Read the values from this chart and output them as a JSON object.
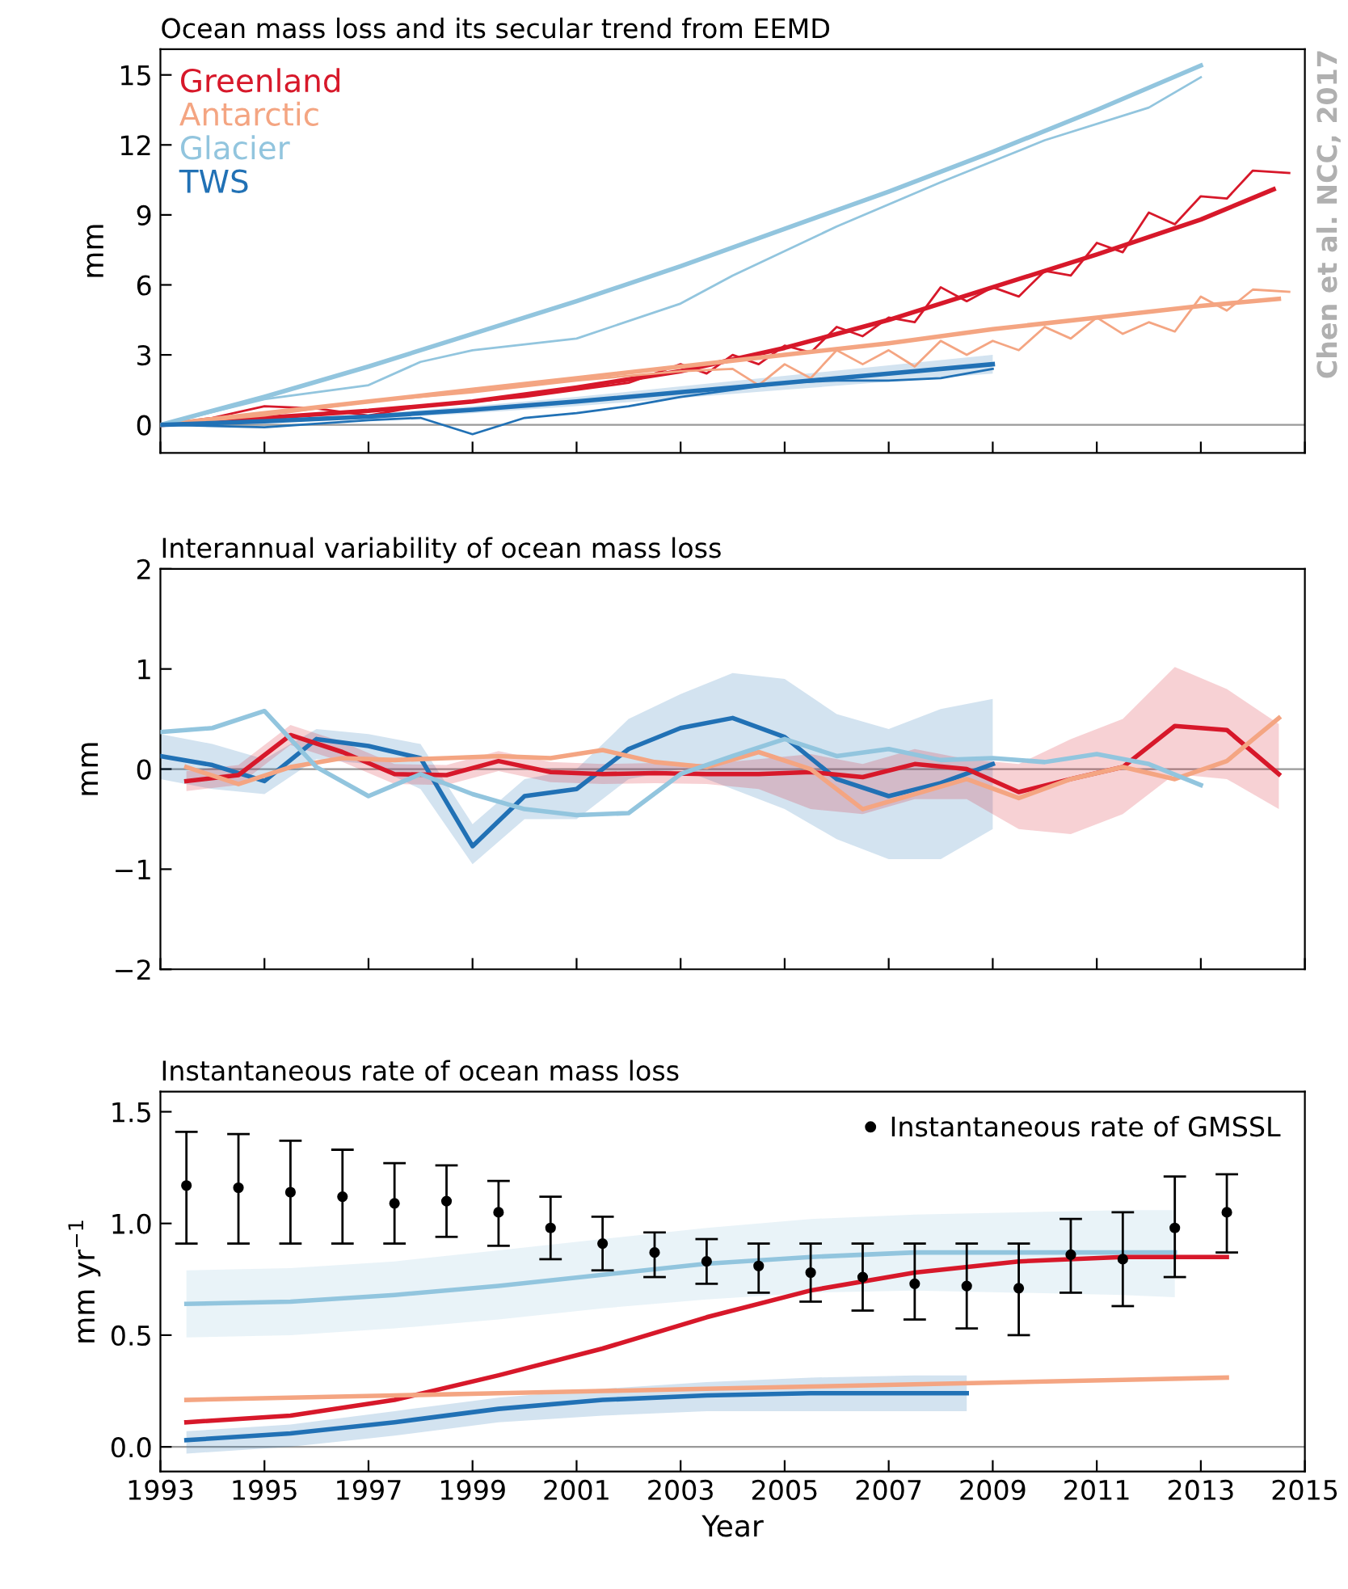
{
  "chart_data": [
    {
      "type": "line",
      "title": "Ocean mass loss and its secular trend from EEMD",
      "ylabel": "mm",
      "xlim": [
        1993,
        2015
      ],
      "xticks": [
        {
          "value": 1993,
          "label": null
        },
        {
          "value": 1995,
          "label": null
        },
        {
          "value": 1997,
          "label": null
        },
        {
          "value": 1999,
          "label": null
        },
        {
          "value": 2001,
          "label": null
        },
        {
          "value": 2003,
          "label": null
        },
        {
          "value": 2005,
          "label": null
        },
        {
          "value": 2007,
          "label": null
        },
        {
          "value": 2009,
          "label": null
        },
        {
          "value": 2011,
          "label": null
        },
        {
          "value": 2013,
          "label": null
        },
        {
          "value": 2015,
          "label": null
        }
      ],
      "ylim": [
        -1.2,
        16.1
      ],
      "yticks": [
        0,
        3,
        6,
        9,
        12,
        15
      ],
      "tick_labels": "y",
      "grid": false,
      "legend": "top left",
      "annotations": [
        "Chen et al. NCC, 2017"
      ],
      "ref_lines": [
        {
          "axis": "y",
          "value": 0,
          "color": "#999999"
        }
      ],
      "series": [
        {
          "name": "Greenland",
          "color": "#d7182a",
          "x": [
            1993,
            1995,
            1997,
            1999,
            2001,
            2003,
            2005,
            2007,
            2009,
            2011,
            2013,
            2014.4
          ],
          "values": [
            0,
            0.3,
            0.6,
            1.0,
            1.6,
            2.3,
            3.3,
            4.5,
            5.9,
            7.3,
            8.8,
            10.1
          ]
        },
        {
          "color": "#d7182a",
          "x": [
            1993,
            1994,
            1995,
            1996,
            1997,
            1998,
            1999,
            2000,
            2001,
            2002,
            2003,
            2003.5,
            2004,
            2004.5,
            2005,
            2005.5,
            2006,
            2006.5,
            2007,
            2007.5,
            2008,
            2008.5,
            2009,
            2009.5,
            2010,
            2010.5,
            2011,
            2011.5,
            2012,
            2012.5,
            2013,
            2013.5,
            2014,
            2014.7
          ],
          "values": [
            0,
            0.3,
            0.8,
            0.7,
            0.4,
            0.8,
            1.0,
            1.2,
            1.5,
            1.8,
            2.6,
            2.2,
            3.0,
            2.6,
            3.4,
            3.1,
            4.2,
            3.8,
            4.6,
            4.4,
            5.9,
            5.3,
            5.9,
            5.5,
            6.6,
            6.4,
            7.8,
            7.4,
            9.1,
            8.6,
            9.8,
            9.7,
            10.9,
            10.8
          ]
        },
        {
          "name": "Antarctic",
          "color": "#f4a582",
          "x": [
            1993,
            1995,
            1997,
            1999,
            2001,
            2003,
            2005,
            2007,
            2009,
            2011,
            2013,
            2014.5
          ],
          "values": [
            0,
            0.5,
            1.0,
            1.5,
            2.0,
            2.5,
            3.0,
            3.5,
            4.1,
            4.6,
            5.1,
            5.4
          ]
        },
        {
          "color": "#f4a582",
          "x": [
            1993,
            1995,
            1997,
            1999,
            2001,
            2003,
            2004,
            2004.5,
            2005,
            2005.5,
            2006,
            2006.5,
            2007,
            2007.5,
            2008,
            2008.5,
            2009,
            2009.5,
            2010,
            2010.5,
            2011,
            2011.5,
            2012,
            2012.5,
            2013,
            2013.5,
            2014,
            2014.7
          ],
          "values": [
            0,
            0.4,
            1.0,
            1.4,
            1.9,
            2.3,
            2.4,
            1.7,
            2.6,
            2.0,
            3.2,
            2.6,
            3.2,
            2.5,
            3.6,
            3.0,
            3.6,
            3.2,
            4.2,
            3.7,
            4.6,
            3.9,
            4.4,
            4.0,
            5.5,
            4.9,
            5.8,
            5.7
          ]
        },
        {
          "name": "Glacier",
          "color": "#92c5de",
          "x": [
            1993,
            1995,
            1997,
            1999,
            2001,
            2003,
            2005,
            2007,
            2009,
            2011,
            2013
          ],
          "values": [
            0,
            1.2,
            2.5,
            3.9,
            5.3,
            6.8,
            8.4,
            10.0,
            11.7,
            13.5,
            15.4
          ]
        },
        {
          "color": "#92c5de",
          "x": [
            1993,
            1995,
            1997,
            1998,
            1999,
            2001,
            2003,
            2004,
            2006,
            2008,
            2010,
            2012,
            2013
          ],
          "values": [
            0,
            1.1,
            1.7,
            2.7,
            3.2,
            3.7,
            5.2,
            6.4,
            8.5,
            10.4,
            12.2,
            13.6,
            14.9
          ]
        },
        {
          "name": "TWS",
          "color": "#2171b5",
          "x": [
            1993,
            1995,
            1997,
            1999,
            2001,
            2003,
            2005,
            2007,
            2009
          ],
          "values": [
            0,
            0.15,
            0.35,
            0.65,
            1.0,
            1.4,
            1.8,
            2.2,
            2.6
          ],
          "lower": [
            0,
            0.1,
            0.25,
            0.5,
            0.8,
            1.15,
            1.5,
            1.85,
            2.2
          ],
          "upper": [
            0,
            0.2,
            0.45,
            0.8,
            1.2,
            1.65,
            2.1,
            2.55,
            3.0
          ]
        },
        {
          "color": "#2171b5",
          "x": [
            1993,
            1995,
            1997,
            1998,
            1999,
            2000,
            2001,
            2002,
            2003,
            2004,
            2005,
            2006,
            2007,
            2008,
            2009
          ],
          "values": [
            0,
            -0.1,
            0.2,
            0.3,
            -0.4,
            0.3,
            0.5,
            0.8,
            1.2,
            1.5,
            1.8,
            1.9,
            1.9,
            2.0,
            2.4
          ]
        }
      ]
    },
    {
      "type": "line",
      "title": "Interannual variability of ocean mass loss",
      "ylabel": "mm",
      "xlim": [
        1993,
        2015
      ],
      "xticks": [
        {
          "value": 1993,
          "label": null
        },
        {
          "value": 1995,
          "label": null
        },
        {
          "value": 1997,
          "label": null
        },
        {
          "value": 1999,
          "label": null
        },
        {
          "value": 2001,
          "label": null
        },
        {
          "value": 2003,
          "label": null
        },
        {
          "value": 2005,
          "label": null
        },
        {
          "value": 2007,
          "label": null
        },
        {
          "value": 2009,
          "label": null
        },
        {
          "value": 2011,
          "label": null
        },
        {
          "value": 2013,
          "label": null
        },
        {
          "value": 2015,
          "label": null
        }
      ],
      "ylim": [
        -2,
        2
      ],
      "yticks": [
        {
          "value": -2,
          "label": "−2"
        },
        {
          "value": -1,
          "label": "−1"
        },
        0,
        1,
        2
      ],
      "tick_labels": "y",
      "grid": false,
      "ref_lines": [
        {
          "axis": "y",
          "value": 0,
          "color": "#999999"
        }
      ],
      "series": [
        {
          "color": "#2171b5",
          "x": [
            1993,
            1994,
            1995,
            1996,
            1997,
            1998,
            1999,
            2000,
            2001,
            2002,
            2003,
            2004,
            2005,
            2006,
            2007,
            2008,
            2009
          ],
          "values": [
            0.13,
            0.04,
            -0.12,
            0.3,
            0.23,
            0.11,
            -0.77,
            -0.27,
            -0.2,
            0.2,
            0.41,
            0.51,
            0.32,
            -0.1,
            -0.27,
            -0.14,
            0.05
          ],
          "lower": [
            -0.1,
            -0.2,
            -0.25,
            0.1,
            0.05,
            -0.2,
            -0.95,
            -0.5,
            -0.5,
            -0.1,
            0.0,
            -0.2,
            -0.4,
            -0.7,
            -0.9,
            -0.9,
            -0.6
          ],
          "upper": [
            0.35,
            0.25,
            0.1,
            0.4,
            0.35,
            0.25,
            -0.55,
            -0.1,
            0.0,
            0.5,
            0.75,
            0.96,
            0.9,
            0.55,
            0.4,
            0.6,
            0.7
          ]
        },
        {
          "color": "#d7182a",
          "x": [
            1993.5,
            1994.5,
            1995.5,
            1996.5,
            1997.5,
            1998.5,
            1999.5,
            2000.5,
            2001.5,
            2002.5,
            2003.5,
            2004.5,
            2005.5,
            2006.5,
            2007.5,
            2008.5,
            2009.5,
            2010.5,
            2011.5,
            2012.5,
            2013.5,
            2014.5
          ],
          "values": [
            -0.12,
            -0.06,
            0.34,
            0.17,
            -0.05,
            -0.06,
            0.08,
            -0.03,
            -0.05,
            -0.04,
            -0.05,
            -0.05,
            -0.03,
            -0.08,
            0.05,
            0,
            -0.23,
            -0.1,
            0.02,
            0.43,
            0.39,
            -0.05
          ],
          "lower": [
            -0.22,
            -0.16,
            0.24,
            0.07,
            -0.15,
            -0.16,
            -0.02,
            -0.13,
            -0.15,
            -0.14,
            -0.15,
            -0.2,
            -0.4,
            -0.45,
            -0.3,
            -0.3,
            -0.6,
            -0.65,
            -0.45,
            -0.05,
            -0.1,
            -0.4
          ],
          "upper": [
            -0.02,
            0.04,
            0.44,
            0.27,
            0.05,
            0.04,
            0.18,
            0.07,
            0.05,
            0.06,
            0.05,
            0.1,
            0.15,
            0.05,
            0.2,
            0.1,
            0.05,
            0.3,
            0.5,
            1.02,
            0.8,
            0.45
          ]
        },
        {
          "color": "#f4a582",
          "x": [
            1993.5,
            1994.5,
            1995.5,
            1996.5,
            1997.5,
            1998.5,
            1999.5,
            2000.5,
            2001.5,
            2002.5,
            2003.5,
            2004.5,
            2005.5,
            2006.5,
            2007.5,
            2008.5,
            2009.5,
            2010.5,
            2011.5,
            2012.5,
            2013.5,
            2014.5
          ],
          "values": [
            0.02,
            -0.15,
            0.02,
            0.11,
            0.09,
            0.11,
            0.13,
            0.11,
            0.19,
            0.07,
            0.02,
            0.17,
            0,
            -0.4,
            -0.25,
            -0.1,
            -0.29,
            -0.1,
            0.02,
            -0.1,
            0.08,
            0.51
          ]
        },
        {
          "color": "#92c5de",
          "x": [
            1993,
            1994,
            1995,
            1996,
            1997,
            1998,
            1999,
            2000,
            2001,
            2002,
            2003,
            2004,
            2005,
            2006,
            2007,
            2008,
            2009,
            2010,
            2011,
            2012,
            2013
          ],
          "values": [
            0.37,
            0.41,
            0.58,
            0.02,
            -0.27,
            -0.05,
            -0.25,
            -0.4,
            -0.46,
            -0.44,
            -0.05,
            0.13,
            0.3,
            0.13,
            0.2,
            0.09,
            0.11,
            0.07,
            0.15,
            0.05,
            -0.16
          ]
        }
      ]
    },
    {
      "type": "line",
      "title": "Instantaneous rate of ocean mass loss",
      "xlabel": "Year",
      "ylabel": "mm yr$^{−1}$",
      "xlim": [
        1993,
        2015
      ],
      "xticks": [
        1993,
        1995,
        1997,
        1999,
        2001,
        2003,
        2005,
        2007,
        2009,
        2011,
        2013,
        2015
      ],
      "ylim": [
        -0.11,
        1.59
      ],
      "yticks": [
        {
          "value": 0,
          "label": "0.0"
        },
        {
          "value": 0.5,
          "label": "0.5"
        },
        {
          "value": 1,
          "label": "1.0"
        },
        {
          "value": 1.5,
          "label": "1.5"
        }
      ],
      "grid": false,
      "legend": "top right",
      "ref_lines": [
        {
          "axis": "y",
          "value": 0,
          "color": "#999999"
        }
      ],
      "series": [
        {
          "color": "#92c5de",
          "x": [
            1993.5,
            1995.5,
            1997.5,
            1999.5,
            2001.5,
            2003.5,
            2005.5,
            2007.5,
            2009.5,
            2011.5,
            2012.5
          ],
          "values": [
            0.64,
            0.65,
            0.68,
            0.72,
            0.77,
            0.82,
            0.85,
            0.87,
            0.87,
            0.87,
            0.87
          ],
          "lower": [
            0.49,
            0.5,
            0.53,
            0.57,
            0.62,
            0.66,
            0.69,
            0.7,
            0.69,
            0.68,
            0.67
          ],
          "upper": [
            0.79,
            0.8,
            0.83,
            0.88,
            0.93,
            0.98,
            1.02,
            1.04,
            1.05,
            1.06,
            1.06
          ]
        },
        {
          "color": "#d7182a",
          "x": [
            1993.5,
            1995.5,
            1997.5,
            1999.5,
            2001.5,
            2003.5,
            2005.5,
            2007.5,
            2009.5,
            2011.5,
            2013.5
          ],
          "values": [
            0.11,
            0.14,
            0.21,
            0.32,
            0.44,
            0.58,
            0.7,
            0.78,
            0.83,
            0.85,
            0.85
          ]
        },
        {
          "color": "#f4a582",
          "x": [
            1993.5,
            1995.5,
            1997.5,
            1999.5,
            2001.5,
            2003.5,
            2005.5,
            2007.5,
            2009.5,
            2011.5,
            2013.5
          ],
          "values": [
            0.21,
            0.22,
            0.23,
            0.24,
            0.25,
            0.26,
            0.27,
            0.28,
            0.29,
            0.3,
            0.31
          ]
        },
        {
          "color": "#2171b5",
          "x": [
            1993.5,
            1995.5,
            1997.5,
            1999.5,
            2001.5,
            2003.5,
            2005.5,
            2007.5,
            2008.5
          ],
          "values": [
            0.03,
            0.06,
            0.11,
            0.17,
            0.21,
            0.23,
            0.24,
            0.24,
            0.24
          ],
          "lower": [
            -0.03,
            0.0,
            0.05,
            0.11,
            0.14,
            0.16,
            0.16,
            0.16,
            0.16
          ],
          "upper": [
            0.07,
            0.1,
            0.16,
            0.22,
            0.26,
            0.29,
            0.31,
            0.32,
            0.32
          ]
        },
        {
          "type": "scatter",
          "name": "Instantaneous rate of GMSSL",
          "color": "#000000",
          "marker": "circle",
          "x": [
            1993.5,
            1994.5,
            1995.5,
            1996.5,
            1997.5,
            1998.5,
            1999.5,
            2000.5,
            2001.5,
            2002.5,
            2003.5,
            2004.5,
            2005.5,
            2006.5,
            2007.5,
            2008.5,
            2009.5,
            2010.5,
            2011.5,
            2012.5,
            2013.5
          ],
          "values": [
            1.17,
            1.16,
            1.14,
            1.12,
            1.09,
            1.1,
            1.05,
            0.98,
            0.91,
            0.87,
            0.83,
            0.81,
            0.78,
            0.76,
            0.73,
            0.72,
            0.71,
            0.86,
            0.84,
            0.98,
            1.05
          ],
          "errors": [
            [
              0.91,
              1.41
            ],
            [
              0.91,
              1.4
            ],
            [
              0.91,
              1.37
            ],
            [
              0.91,
              1.33
            ],
            [
              0.91,
              1.27
            ],
            [
              0.94,
              1.26
            ],
            [
              0.9,
              1.19
            ],
            [
              0.84,
              1.12
            ],
            [
              0.79,
              1.03
            ],
            [
              0.76,
              0.96
            ],
            [
              0.73,
              0.93
            ],
            [
              0.69,
              0.91
            ],
            [
              0.65,
              0.91
            ],
            [
              0.61,
              0.91
            ],
            [
              0.57,
              0.91
            ],
            [
              0.53,
              0.91
            ],
            [
              0.5,
              0.91
            ],
            [
              0.69,
              1.02
            ],
            [
              0.63,
              1.05
            ],
            [
              0.76,
              1.21
            ],
            [
              0.87,
              1.22
            ]
          ]
        }
      ]
    }
  ]
}
